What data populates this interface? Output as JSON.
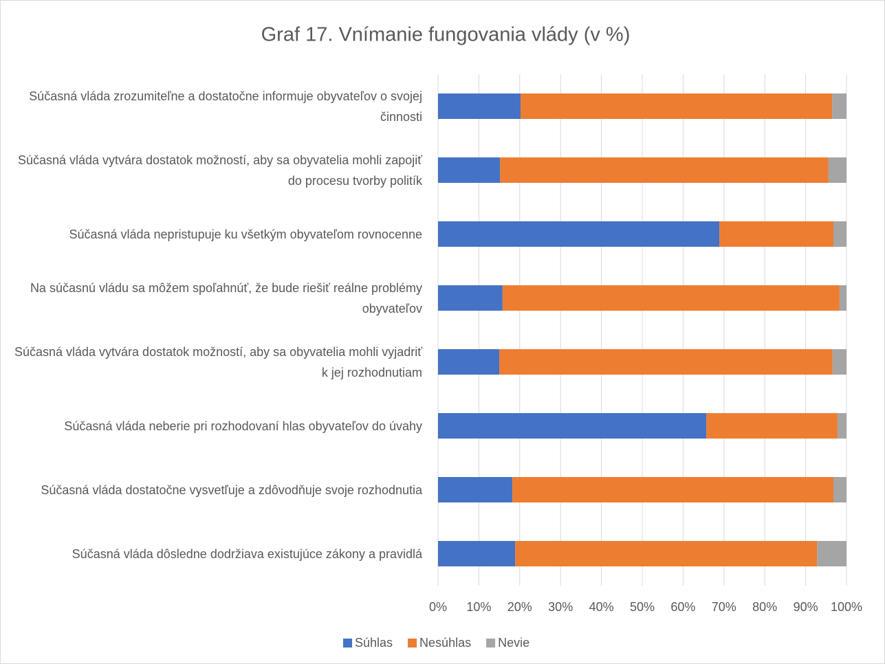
{
  "chart_data": {
    "type": "stacked-bar-horizontal",
    "title": "Graf 17. Vnímanie fungovania vlády (v %)",
    "categories": [
      "Súčasná vláda zrozumiteľne a dostatočne informuje obyvateľov o svojej činnosti",
      "Súčasná vláda vytvára dostatok možností, aby sa obyvatelia mohli zapojiť do procesu tvorby politík",
      "Súčasná vláda nepristupuje ku všetkým obyvateľom rovnocenne",
      "Na súčasnú vládu sa môžem spoľahnúť, že bude riešiť reálne problémy obyvateľov",
      "Súčasná vláda vytvára dostatok možností, aby sa obyvatelia mohli vyjadriť k jej rozhodnutiam",
      "Súčasná vláda neberie pri rozhodovaní hlas obyvateľov do úvahy",
      "Súčasná vláda dostatočne vysvetľuje a zdôvodňuje svoje rozhodnutia",
      "Súčasná vláda dôsledne dodržiava existujúce zákony a pravidlá"
    ],
    "series": [
      {
        "name": "Súhlas",
        "color": "#4472c4",
        "values": [
          20.2,
          15.2,
          68.9,
          15.8,
          15.0,
          65.7,
          18.2,
          18.9
        ]
      },
      {
        "name": "Nesúhlas",
        "color": "#ed7d31",
        "values": [
          76.3,
          80.4,
          27.9,
          82.5,
          81.6,
          32.1,
          78.6,
          73.9
        ]
      },
      {
        "name": "Nevie",
        "color": "#a5a5a5",
        "values": [
          3.5,
          4.4,
          3.2,
          1.7,
          3.4,
          2.2,
          3.2,
          7.2
        ]
      }
    ],
    "xlim": [
      0,
      100
    ],
    "xticks": [
      {
        "value": 0,
        "label": "0%"
      },
      {
        "value": 10,
        "label": "10%"
      },
      {
        "value": 20,
        "label": "20%"
      },
      {
        "value": 30,
        "label": "30%"
      },
      {
        "value": 40,
        "label": "40%"
      },
      {
        "value": 50,
        "label": "50%"
      },
      {
        "value": 60,
        "label": "60%"
      },
      {
        "value": 70,
        "label": "70%"
      },
      {
        "value": 80,
        "label": "80%"
      },
      {
        "value": 90,
        "label": "90%"
      },
      {
        "value": 100,
        "label": "100%"
      }
    ],
    "grid": true,
    "legend": "bottom"
  }
}
